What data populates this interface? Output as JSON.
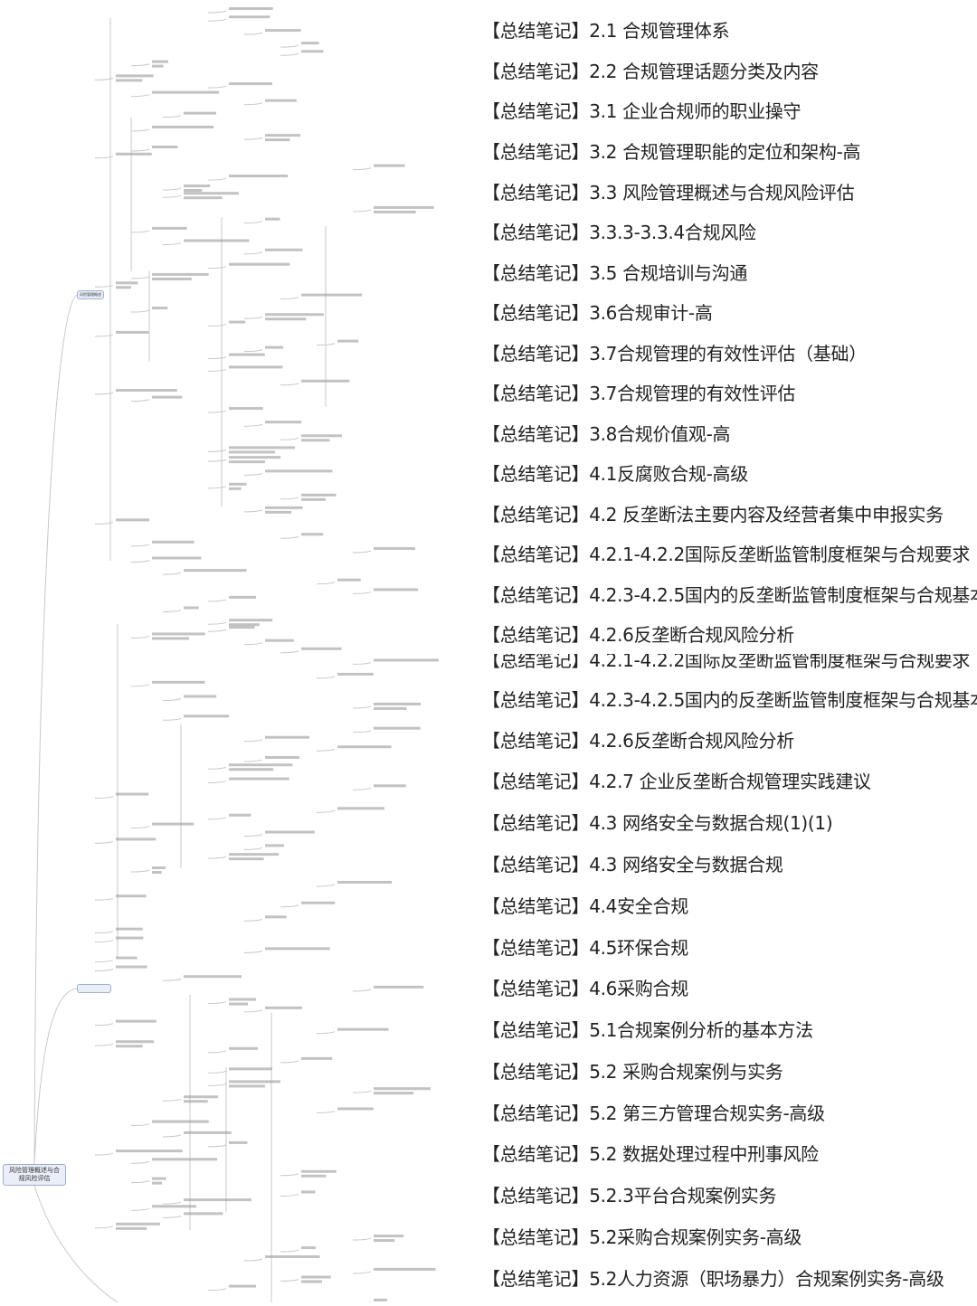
{
  "mindmap": {
    "root": "风险管理概述与合规风险评估",
    "branch_1": "风险管理概述"
  },
  "notes": {
    "prefix": "【总结笔记】",
    "items": [
      "2.1 合规管理体系",
      "2.2 合规管理话题分类及内容",
      "3.1 企业合规师的职业操守",
      "3.2 合规管理职能的定位和架构-高",
      "3.3 风险管理概述与合规风险评估",
      "3.3.3-3.3.4合规风险",
      "3.5 合规培训与沟通",
      "3.6合规审计-高",
      "3.7合规管理的有效性评估（基础）",
      "3.7合规管理的有效性评估",
      "3.8合规价值观-高",
      "4.1反腐败合规-高级",
      "4.2 反垄断法主要内容及经营者集中申报实务",
      "4.2.1-4.2.2国际反垄断监管制度框架与合规要求",
      "4.2.3-4.2.5国内的反垄断监管制度框架与合规基本要求",
      "4.2.6反垄断合规风险分析",
      "4.2.1-4.2.2国际反垄断监管制度框架与合规要求",
      "4.2.3-4.2.5国内的反垄断监管制度框架与合规基本要求",
      "4.2.6反垄断合规风险分析",
      "4.2.7 企业反垄断合规管理实践建议",
      "4.3 网络安全与数据合规(1)(1)",
      "4.3 网络安全与数据合规",
      "4.4安全合规",
      "4.5环保合规",
      "4.6采购合规",
      "5.1合规案例分析的基本方法",
      "5.2 采购合规案例与实务",
      "5.2 第三方管理合规实务-高级",
      "5.2 数据处理过程中刑事风险",
      "5.2.3平台合规案例实务",
      "5.2采购合规案例实务-高级",
      "5.2人力资源（职场暴力）合规案例实务-高级"
    ]
  },
  "colors": {
    "node_fill": "#e9eef8",
    "node_border": "#9fb0cc",
    "line": "#c8c8c8",
    "text": "#222222"
  }
}
